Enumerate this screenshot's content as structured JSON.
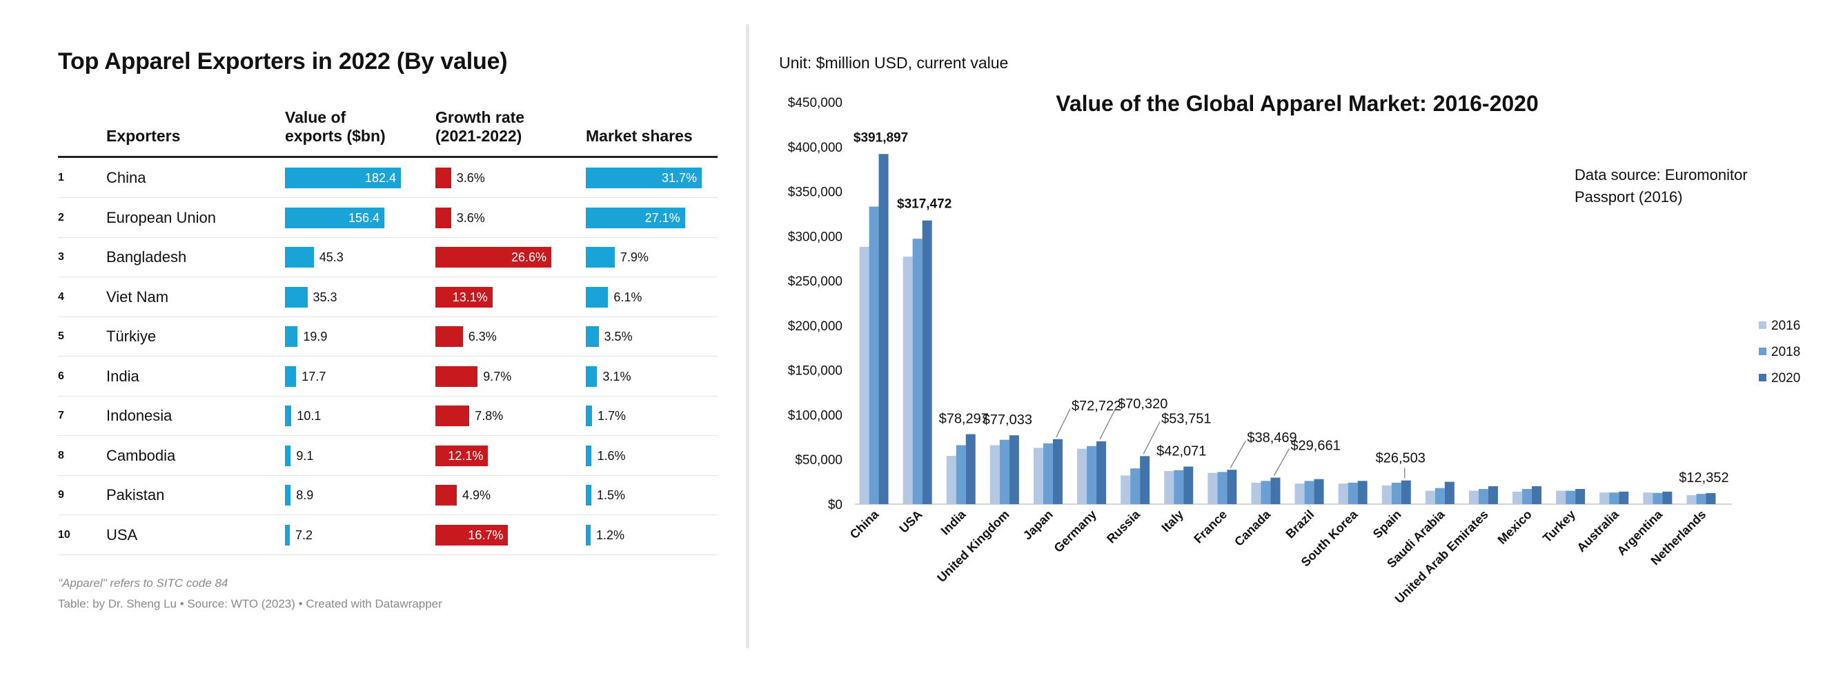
{
  "table": {
    "title": "Top Apparel Exporters in 2022 (By value)",
    "headers": {
      "exporters": "Exporters",
      "value_l1": "Value of",
      "value_l2": "exports ($bn)",
      "growth_l1": "Growth rate",
      "growth_l2": "(2021-2022)",
      "shares": "Market shares"
    },
    "rows": [
      {
        "rank": "1",
        "name": "China",
        "value": 182.4,
        "value_label": "182.4",
        "growth": 3.6,
        "growth_label": "3.6%",
        "share": 31.7,
        "share_label": "31.7%"
      },
      {
        "rank": "2",
        "name": "European Union",
        "value": 156.4,
        "value_label": "156.4",
        "growth": 3.6,
        "growth_label": "3.6%",
        "share": 27.1,
        "share_label": "27.1%"
      },
      {
        "rank": "3",
        "name": "Bangladesh",
        "value": 45.3,
        "value_label": "45.3",
        "growth": 26.6,
        "growth_label": "26.6%",
        "share": 7.9,
        "share_label": "7.9%"
      },
      {
        "rank": "4",
        "name": "Viet Nam",
        "value": 35.3,
        "value_label": "35.3",
        "growth": 13.1,
        "growth_label": "13.1%",
        "share": 6.1,
        "share_label": "6.1%"
      },
      {
        "rank": "5",
        "name": "Türkiye",
        "value": 19.9,
        "value_label": "19.9",
        "growth": 6.3,
        "growth_label": "6.3%",
        "share": 3.5,
        "share_label": "3.5%"
      },
      {
        "rank": "6",
        "name": "India",
        "value": 17.7,
        "value_label": "17.7",
        "growth": 9.7,
        "growth_label": "9.7%",
        "share": 3.1,
        "share_label": "3.1%"
      },
      {
        "rank": "7",
        "name": "Indonesia",
        "value": 10.1,
        "value_label": "10.1",
        "growth": 7.8,
        "growth_label": "7.8%",
        "share": 1.7,
        "share_label": "1.7%"
      },
      {
        "rank": "8",
        "name": "Cambodia",
        "value": 9.1,
        "value_label": "9.1",
        "growth": 12.1,
        "growth_label": "12.1%",
        "share": 1.6,
        "share_label": "1.6%"
      },
      {
        "rank": "9",
        "name": "Pakistan",
        "value": 8.9,
        "value_label": "8.9",
        "growth": 4.9,
        "growth_label": "4.9%",
        "share": 1.5,
        "share_label": "1.5%"
      },
      {
        "rank": "10",
        "name": "USA",
        "value": 7.2,
        "value_label": "7.2",
        "growth": 16.7,
        "growth_label": "16.7%",
        "share": 1.2,
        "share_label": "1.2%"
      }
    ],
    "note": "\"Apparel\" refers to SITC code 84",
    "source": "Table: by Dr. Sheng Lu • Source: WTO (2023) • Created with Datawrapper",
    "colors": {
      "value": "#1aa3d6",
      "growth": "#c8191e",
      "share": "#1aa3d6"
    }
  },
  "chart_data": {
    "type": "bar",
    "title": "Value of the Global Apparel Market: 2016-2020",
    "unit": "Unit: $million USD, current value",
    "source_l1": "Data source: Euromonitor",
    "source_l2": "Passport (2016)",
    "ylim": [
      0,
      450000
    ],
    "yticks": [
      0,
      50000,
      100000,
      150000,
      200000,
      250000,
      300000,
      350000,
      400000,
      450000
    ],
    "ytick_labels": [
      "$0",
      "$50,000",
      "$100,000",
      "$150,000",
      "$200,000",
      "$250,000",
      "$300,000",
      "$350,000",
      "$400,000",
      "$450,000"
    ],
    "categories": [
      "China",
      "USA",
      "India",
      "United Kingdom",
      "Japan",
      "Germany",
      "Russia",
      "Italy",
      "France",
      "Canada",
      "Brazil",
      "South Korea",
      "Spain",
      "Saudi Arabia",
      "United Arab Emirates",
      "Mexico",
      "Turkey",
      "Australia",
      "Argentina",
      "Netherlands"
    ],
    "series": [
      {
        "name": "2016",
        "color": "#b4c8e4",
        "values": [
          288000,
          277000,
          54000,
          66000,
          63000,
          62000,
          32000,
          37000,
          35000,
          24000,
          23000,
          23000,
          21000,
          15000,
          15000,
          14000,
          15000,
          13000,
          13000,
          10000
        ]
      },
      {
        "name": "2018",
        "color": "#6a9fd4",
        "values": [
          333000,
          297000,
          66000,
          72000,
          68000,
          65000,
          40000,
          38000,
          36000,
          26000,
          26000,
          24000,
          24000,
          18000,
          17000,
          17000,
          15000,
          13000,
          12500,
          11500
        ]
      },
      {
        "name": "2020",
        "color": "#4273aa",
        "values": [
          391897,
          317472,
          78297,
          77033,
          72722,
          70320,
          53751,
          42071,
          38469,
          29661,
          28000,
          26000,
          26503,
          25000,
          20000,
          20000,
          17000,
          14000,
          14000,
          12352
        ]
      }
    ],
    "labels": [
      {
        "category": "China",
        "text": "$391,897",
        "bold": true
      },
      {
        "category": "USA",
        "text": "$317,472",
        "bold": true
      },
      {
        "category": "India",
        "text": "$78,297"
      },
      {
        "category": "United Kingdom",
        "text": "$77,033"
      },
      {
        "category": "Japan",
        "text": "$72,722"
      },
      {
        "category": "Germany",
        "text": "$70,320"
      },
      {
        "category": "Russia",
        "text": "$53,751"
      },
      {
        "category": "Italy",
        "text": "$42,071"
      },
      {
        "category": "France",
        "text": "$38,469"
      },
      {
        "category": "Canada",
        "text": "$29,661"
      },
      {
        "category": "Spain",
        "text": "$26,503"
      },
      {
        "category": "Netherlands",
        "text": "$12,352"
      }
    ],
    "legend": "right"
  }
}
